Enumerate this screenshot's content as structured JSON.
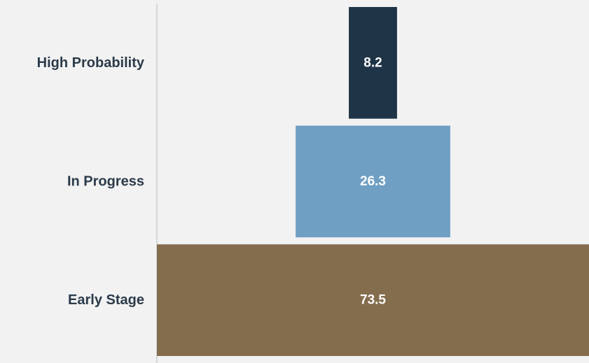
{
  "chart_data": {
    "type": "bar",
    "orientation": "horizontal-funnel",
    "categories": [
      "High Probability",
      "In Progress",
      "Early Stage"
    ],
    "values": [
      8.2,
      26.3,
      73.5
    ],
    "colors": [
      "#1f3447",
      "#6f9fc3",
      "#846d4d"
    ],
    "axis_color": "#d6d6d6",
    "label_color": "#2b3a4a",
    "value_label_color": "#ffffff",
    "title": "",
    "xlabel": "",
    "ylabel": "",
    "grid": false,
    "legend": "none"
  }
}
